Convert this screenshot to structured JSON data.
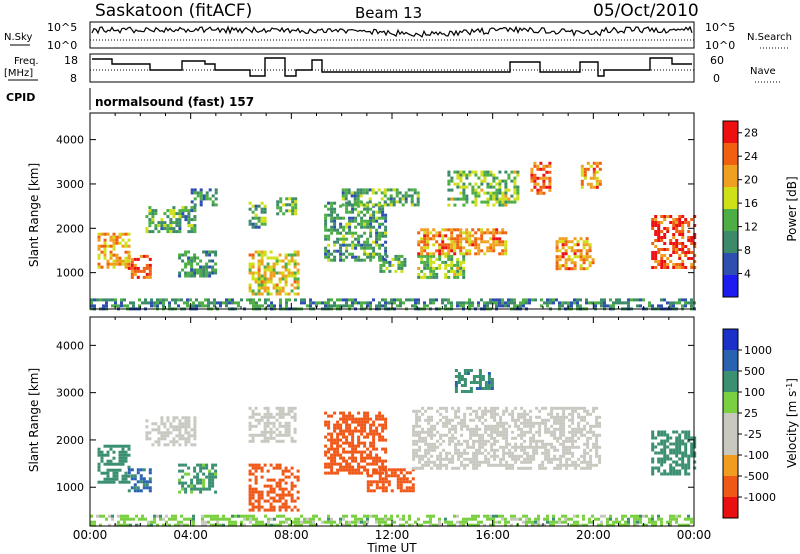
{
  "header": {
    "station": "Saskatoon (fitACF)",
    "beam": "Beam 13",
    "date": "05/Oct/2010"
  },
  "noise_panel": {
    "left_label": "N.Sky",
    "right_label": "N.Search",
    "tick_top": "10^5",
    "tick_bottom": "10^0",
    "right_tick_top": "10^5",
    "right_tick_bottom": "10^0"
  },
  "freq_panel": {
    "left_label_1": "Freq.",
    "left_label_2": "[MHz]",
    "left_tick_top": "18",
    "left_tick_bottom": "8",
    "right_label": "Nave",
    "right_tick_top": "60",
    "right_tick_bottom": "0"
  },
  "cpid": {
    "label": "CPID",
    "value": "normalsound (fast) 157"
  },
  "colors": {
    "power_scale": [
      "#1c1cf0",
      "#2e4fb0",
      "#3d8a6a",
      "#4cae44",
      "#cfe018",
      "#f0a020",
      "#f06010",
      "#ee1010"
    ],
    "velocity_scale": [
      "#e81010",
      "#f05818",
      "#f09c20",
      "#c8c8c0",
      "#c8c8c0",
      "#7ad040",
      "#3a9070",
      "#2a62b0",
      "#1a30c8"
    ]
  },
  "chart_data": [
    {
      "type": "heatmap",
      "title": "",
      "xlabel": "Time UT",
      "ylabel": "Slant Range [km]",
      "x_ticks": [
        "00:00",
        "04:00",
        "08:00",
        "12:00",
        "16:00",
        "20:00",
        "00:00"
      ],
      "xlim_hours": [
        0,
        24
      ],
      "y_ticks": [
        1000,
        2000,
        3000,
        4000
      ],
      "ylim": [
        180,
        4600
      ],
      "colorbar": {
        "label": "Power [dB]",
        "ticks": [
          4,
          8,
          12,
          16,
          20,
          24,
          28
        ],
        "range": [
          0,
          30
        ]
      },
      "echo_regions": [
        {
          "t0": 0.3,
          "t1": 1.6,
          "r0": 1100,
          "r1": 1900,
          "value": 20
        },
        {
          "t0": 1.5,
          "t1": 2.4,
          "r0": 900,
          "r1": 1400,
          "value": 24
        },
        {
          "t0": 2.2,
          "t1": 4.2,
          "r0": 1900,
          "r1": 2500,
          "value": 12
        },
        {
          "t0": 3.5,
          "t1": 5.0,
          "r0": 900,
          "r1": 1500,
          "value": 10
        },
        {
          "t0": 4.0,
          "t1": 5.0,
          "r0": 2500,
          "r1": 2900,
          "value": 10
        },
        {
          "t0": 6.3,
          "t1": 8.3,
          "r0": 500,
          "r1": 1500,
          "value": 18
        },
        {
          "t0": 6.3,
          "t1": 7.0,
          "r0": 2000,
          "r1": 2600,
          "value": 12
        },
        {
          "t0": 7.4,
          "t1": 8.2,
          "r0": 2300,
          "r1": 2700,
          "value": 14
        },
        {
          "t0": 9.3,
          "t1": 11.8,
          "r0": 1300,
          "r1": 2600,
          "value": 11
        },
        {
          "t0": 10.0,
          "t1": 13.0,
          "r0": 2500,
          "r1": 2900,
          "value": 12
        },
        {
          "t0": 11.5,
          "t1": 12.5,
          "r0": 1000,
          "r1": 1400,
          "value": 12
        },
        {
          "t0": 13.0,
          "t1": 14.8,
          "r0": 900,
          "r1": 1400,
          "value": 14
        },
        {
          "t0": 13.0,
          "t1": 16.5,
          "r0": 1400,
          "r1": 2000,
          "value": 22
        },
        {
          "t0": 14.2,
          "t1": 17.0,
          "r0": 2500,
          "r1": 3300,
          "value": 14
        },
        {
          "t0": 17.5,
          "t1": 18.3,
          "r0": 2800,
          "r1": 3500,
          "value": 24
        },
        {
          "t0": 18.5,
          "t1": 20.0,
          "r0": 1100,
          "r1": 1800,
          "value": 22
        },
        {
          "t0": 19.5,
          "t1": 20.3,
          "r0": 2900,
          "r1": 3500,
          "value": 22
        },
        {
          "t0": 22.3,
          "t1": 24.0,
          "r0": 1100,
          "r1": 2300,
          "value": 26
        },
        {
          "t0": 0.0,
          "t1": 24.0,
          "r0": 200,
          "r1": 420,
          "value": 10
        }
      ]
    },
    {
      "type": "heatmap",
      "title": "",
      "xlabel": "Time UT",
      "ylabel": "Slant Range [km]",
      "x_ticks": [
        "00:00",
        "04:00",
        "08:00",
        "12:00",
        "16:00",
        "20:00",
        "00:00"
      ],
      "xlim_hours": [
        0,
        24
      ],
      "y_ticks": [
        1000,
        2000,
        3000,
        4000
      ],
      "ylim": [
        180,
        4600
      ],
      "colorbar": {
        "label": "Velocity [m s^-1]",
        "ticks": [
          "1000",
          "500",
          "100",
          "25",
          "-25",
          "-100",
          "-500",
          "-1000"
        ],
        "range": [
          -1000,
          1000
        ]
      },
      "echo_regions": [
        {
          "t0": 0.3,
          "t1": 1.6,
          "r0": 1100,
          "r1": 1900,
          "value": 200
        },
        {
          "t0": 1.5,
          "t1": 2.4,
          "r0": 900,
          "r1": 1400,
          "value": 600
        },
        {
          "t0": 2.2,
          "t1": 4.2,
          "r0": 1900,
          "r1": 2500,
          "value": 0
        },
        {
          "t0": 3.5,
          "t1": 5.0,
          "r0": 900,
          "r1": 1500,
          "value": 150
        },
        {
          "t0": 6.3,
          "t1": 8.3,
          "r0": 500,
          "r1": 1500,
          "value": -120
        },
        {
          "t0": 6.3,
          "t1": 8.2,
          "r0": 2000,
          "r1": 2700,
          "value": 0
        },
        {
          "t0": 9.3,
          "t1": 11.8,
          "r0": 1300,
          "r1": 2600,
          "value": -300
        },
        {
          "t0": 11.0,
          "t1": 12.8,
          "r0": 900,
          "r1": 1400,
          "value": -150
        },
        {
          "t0": 12.8,
          "t1": 20.3,
          "r0": 1400,
          "r1": 2700,
          "value": 0
        },
        {
          "t0": 14.5,
          "t1": 16.0,
          "r0": 3000,
          "r1": 3500,
          "value": 400
        },
        {
          "t0": 22.3,
          "t1": 24.0,
          "r0": 1300,
          "r1": 2200,
          "value": 300
        },
        {
          "t0": 0.0,
          "t1": 24.0,
          "r0": 200,
          "r1": 420,
          "value": 60
        }
      ]
    }
  ]
}
